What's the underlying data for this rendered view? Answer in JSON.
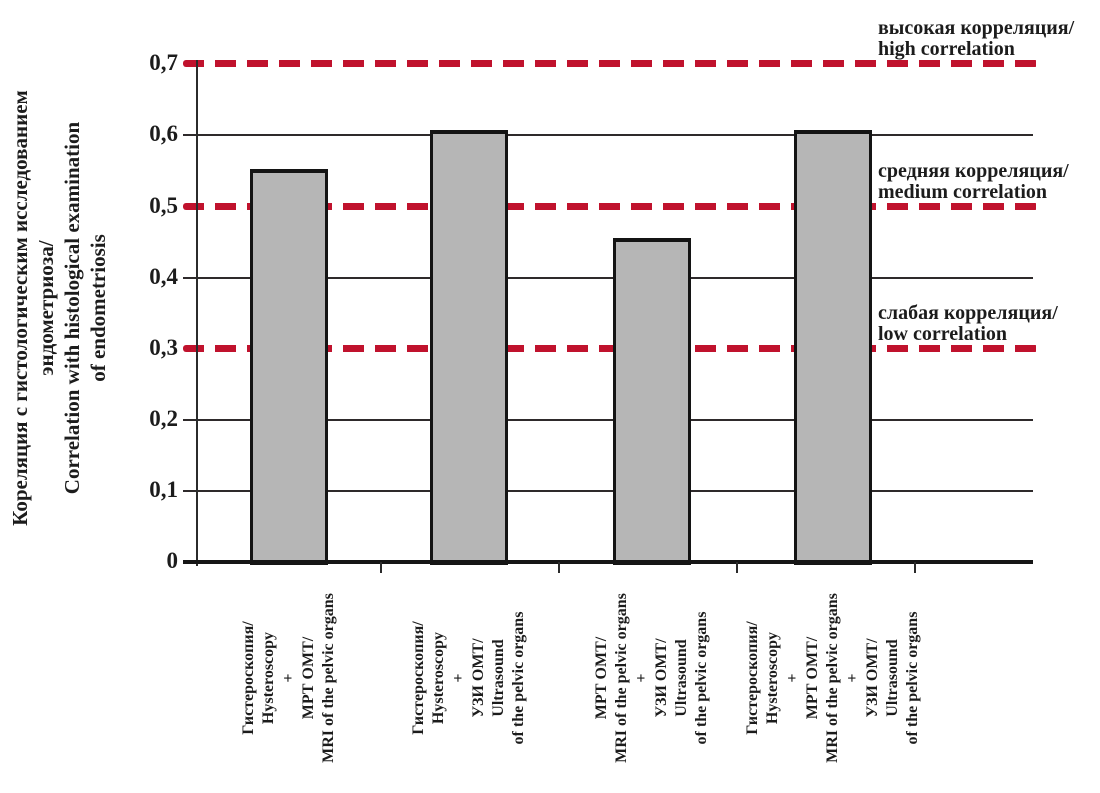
{
  "colors": {
    "threshold_red": "#c0122d",
    "bar_fill": "#b6b6b6",
    "bar_border": "#141414",
    "axis_black": "#2b2b2b",
    "background": "#ffffff"
  },
  "y_axis": {
    "title_lines": [
      "Кореляция с гистологическим исследованием",
      "эндометриоза/",
      "Correlation with histological examination",
      "of endometriosis"
    ],
    "tick_labels": [
      "0",
      "0,1",
      "0,2",
      "0,3",
      "0,4",
      "0,5",
      "0,6",
      "0,7"
    ],
    "tick_step": 0.1
  },
  "thresholds": [
    {
      "value": 0.7,
      "label_ru": "высокая корреляция/",
      "label_en": "high correlation"
    },
    {
      "value": 0.5,
      "label_ru": "средняя корреляция/",
      "label_en": "medium correlation"
    },
    {
      "value": 0.3,
      "label_ru": "слабая корреляция/",
      "label_en": "low correlation"
    }
  ],
  "chart_data": {
    "type": "bar",
    "title": "",
    "xlabel": "",
    "ylabel": "Кореляция с гистологическим исследованием эндометриоза/ Correlation with histological examination of endometriosis",
    "ylim": [
      0,
      0.7
    ],
    "grid_solid_at": [
      0.1,
      0.2,
      0.4,
      0.6
    ],
    "threshold_lines_at": [
      0.3,
      0.5,
      0.7
    ],
    "legend": "none",
    "categories": [
      "Гистероскопия/Hysteroscopy + МРТ ОМТ/MRI of the pelvic organs",
      "Гистероскопия/Hysteroscopy + УЗИ ОМТ/Ultrasound of the pelvic organs",
      "МРТ ОМТ/MRI of the pelvic organs + УЗИ ОМТ/Ultrasound of the pelvic organs",
      "Гистероскопия/Hysteroscopy + МРТ ОМТ/MRI of the pelvic organs + УЗИ ОМТ/Ultrasound of the pelvic organs"
    ],
    "category_label_lines": [
      [
        "Гистероскопия/",
        "Hysteroscopy",
        "+",
        "МРТ ОМТ/",
        "MRI of the pelvic organs"
      ],
      [
        "Гистероскопия/",
        "Hysteroscopy",
        "+",
        "УЗИ ОМТ/",
        "Ultrasound",
        "of the pelvic organs"
      ],
      [
        "МРТ ОМТ/",
        "MRI of the pelvic organs",
        "+",
        "УЗИ ОМТ/",
        "Ultrasound",
        "of the pelvic organs"
      ],
      [
        "Гистероскопия/",
        "Hysteroscopy",
        "+",
        "МРТ ОМТ/",
        "MRI of the pelvic organs",
        "+",
        "УЗИ ОМТ/",
        "Ultrasound",
        "of the pelvic organs"
      ]
    ],
    "values": [
      0.553,
      0.608,
      0.456,
      0.608
    ]
  }
}
